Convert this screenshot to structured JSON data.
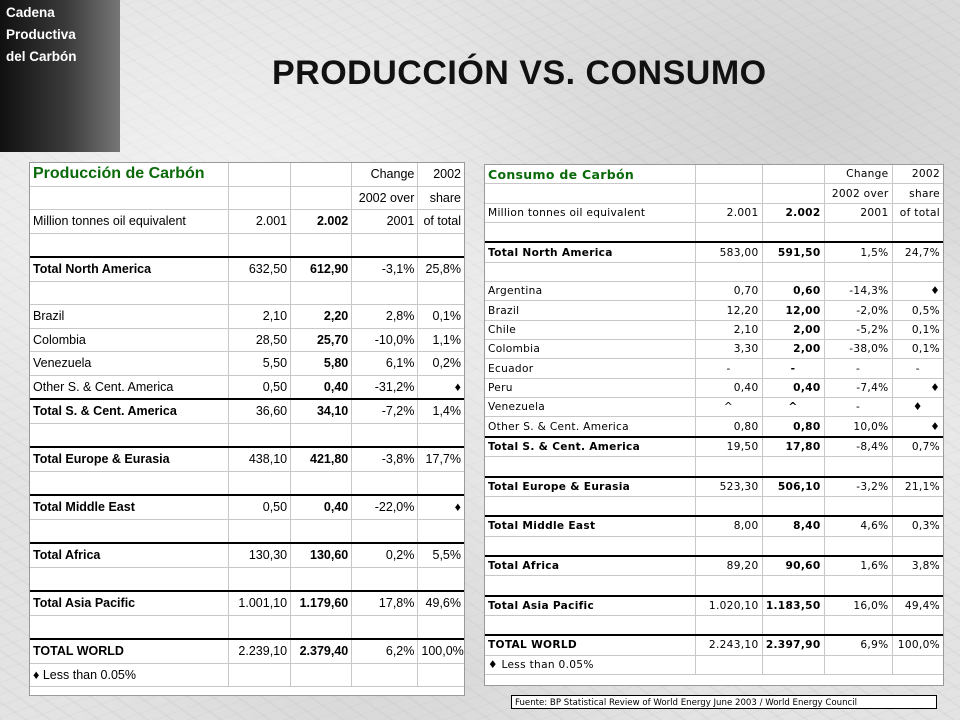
{
  "side_title": "Cadena\nProductiva\ndel Carbón",
  "main_title": "PRODUCCIÓN VS. CONSUMO",
  "production": {
    "title": "Producción de Carbón",
    "header_change": "Change",
    "header_2002": "2002",
    "header_2002_over": "2002 over",
    "header_share": "share",
    "units": "Million tonnes oil equivalent",
    "col_2001": "2.001",
    "col_2002": "2.002",
    "col_change": "2001",
    "col_share": "of total",
    "rows": [
      {
        "label": "Total North America",
        "v2001": "632,50",
        "v2002": "612,90",
        "change": "-3,1%",
        "share": "25,8%",
        "total": true
      },
      {
        "label": "",
        "v2001": "",
        "v2002": "",
        "change": "",
        "share": ""
      },
      {
        "label": "Brazil",
        "v2001": "2,10",
        "v2002": "2,20",
        "change": "2,8%",
        "share": "0,1%"
      },
      {
        "label": "Colombia",
        "v2001": "28,50",
        "v2002": "25,70",
        "change": "-10,0%",
        "share": "1,1%"
      },
      {
        "label": "Venezuela",
        "v2001": "5,50",
        "v2002": "5,80",
        "change": "6,1%",
        "share": "0,2%"
      },
      {
        "label": "Other S. & Cent. America",
        "v2001": "0,50",
        "v2002": "0,40",
        "change": "-31,2%",
        "share": "♦"
      },
      {
        "label": "Total S. & Cent. America",
        "v2001": "36,60",
        "v2002": "34,10",
        "change": "-7,2%",
        "share": "1,4%",
        "total": true
      },
      {
        "label": "",
        "v2001": "",
        "v2002": "",
        "change": "",
        "share": ""
      },
      {
        "label": "Total Europe & Eurasia",
        "v2001": "438,10",
        "v2002": "421,80",
        "change": "-3,8%",
        "share": "17,7%",
        "total": true
      },
      {
        "label": "",
        "v2001": "",
        "v2002": "",
        "change": "",
        "share": ""
      },
      {
        "label": "Total Middle East",
        "v2001": "0,50",
        "v2002": "0,40",
        "change": "-22,0%",
        "share": "♦",
        "total": true
      },
      {
        "label": "",
        "v2001": "",
        "v2002": "",
        "change": "",
        "share": ""
      },
      {
        "label": "Total Africa",
        "v2001": "130,30",
        "v2002": "130,60",
        "change": "0,2%",
        "share": "5,5%",
        "total": true
      },
      {
        "label": "",
        "v2001": "",
        "v2002": "",
        "change": "",
        "share": ""
      },
      {
        "label": "Total Asia Pacific",
        "v2001": "1.001,10",
        "v2002": "1.179,60",
        "change": "17,8%",
        "share": "49,6%",
        "total": true
      },
      {
        "label": "",
        "v2001": "",
        "v2002": "",
        "change": "",
        "share": ""
      },
      {
        "label": "TOTAL WORLD",
        "v2001": "2.239,10",
        "v2002": "2.379,40",
        "change": "6,2%",
        "share": "100,0%",
        "total": true
      },
      {
        "label": "♦   Less than 0.05%",
        "v2001": "",
        "v2002": "",
        "change": "",
        "share": "",
        "note": true
      }
    ]
  },
  "consumption": {
    "title": "Consumo de Carbón",
    "header_change": "Change",
    "header_2002": "2002",
    "header_2002_over": "2002 over",
    "header_share": "share",
    "units": "Million tonnes oil equivalent",
    "col_2001": "2.001",
    "col_2002": "2.002",
    "col_change": "2001",
    "col_share": "of total",
    "rows": [
      {
        "label": "Total North America",
        "v2001": "583,00",
        "v2002": "591,50",
        "change": "1,5%",
        "share": "24,7%",
        "total": true
      },
      {
        "label": "",
        "v2001": "",
        "v2002": "",
        "change": "",
        "share": ""
      },
      {
        "label": "Argentina",
        "v2001": "0,70",
        "v2002": "0,60",
        "change": "-14,3%",
        "share": "♦"
      },
      {
        "label": "Brazil",
        "v2001": "12,20",
        "v2002": "12,00",
        "change": "-2,0%",
        "share": "0,5%"
      },
      {
        "label": "Chile",
        "v2001": "2,10",
        "v2002": "2,00",
        "change": "-5,2%",
        "share": "0,1%"
      },
      {
        "label": "Colombia",
        "v2001": "3,30",
        "v2002": "2,00",
        "change": "-38,0%",
        "share": "0,1%"
      },
      {
        "label": "Ecuador",
        "v2001": "-",
        "v2002": "-",
        "change": "-",
        "share": "-",
        "center": true
      },
      {
        "label": "Peru",
        "v2001": "0,40",
        "v2002": "0,40",
        "change": "-7,4%",
        "share": "♦"
      },
      {
        "label": "Venezuela",
        "v2001": "^",
        "v2002": "^",
        "change": "-",
        "share": "♦",
        "center": true
      },
      {
        "label": "Other S. & Cent. America",
        "v2001": "0,80",
        "v2002": "0,80",
        "change": "10,0%",
        "share": "♦"
      },
      {
        "label": "Total S. & Cent. America",
        "v2001": "19,50",
        "v2002": "17,80",
        "change": "-8,4%",
        "share": "0,7%",
        "total": true
      },
      {
        "label": "",
        "v2001": "",
        "v2002": "",
        "change": "",
        "share": ""
      },
      {
        "label": "Total Europe & Eurasia",
        "v2001": "523,30",
        "v2002": "506,10",
        "change": "-3,2%",
        "share": "21,1%",
        "total": true
      },
      {
        "label": "",
        "v2001": "",
        "v2002": "",
        "change": "",
        "share": ""
      },
      {
        "label": "Total Middle East",
        "v2001": "8,00",
        "v2002": "8,40",
        "change": "4,6%",
        "share": "0,3%",
        "total": true
      },
      {
        "label": "",
        "v2001": "",
        "v2002": "",
        "change": "",
        "share": ""
      },
      {
        "label": "Total Africa",
        "v2001": "89,20",
        "v2002": "90,60",
        "change": "1,6%",
        "share": "3,8%",
        "total": true
      },
      {
        "label": "",
        "v2001": "",
        "v2002": "",
        "change": "",
        "share": ""
      },
      {
        "label": "Total Asia Pacific",
        "v2001": "1.020,10",
        "v2002": "1.183,50",
        "change": "16,0%",
        "share": "49,4%",
        "total": true
      },
      {
        "label": "",
        "v2001": "",
        "v2002": "",
        "change": "",
        "share": ""
      },
      {
        "label": "TOTAL WORLD",
        "v2001": "2.243,10",
        "v2002": "2.397,90",
        "change": "6,9%",
        "share": "100,0%",
        "total": true
      },
      {
        "label": "♦   Less than 0.05%",
        "v2001": "",
        "v2002": "",
        "change": "",
        "share": "",
        "note": true
      }
    ]
  },
  "source": "Fuente: BP Statistical Review of World Energy June 2003 / World Energy Council"
}
